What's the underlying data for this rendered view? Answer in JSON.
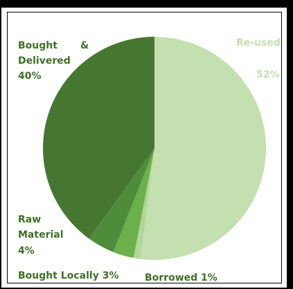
{
  "chart_data": {
    "type": "pie",
    "title": "",
    "slices": [
      {
        "label": "Re-used",
        "value": 52,
        "value_text": "52%",
        "color": "#c4dfb0"
      },
      {
        "label": "Borrowed",
        "value": 1,
        "value_text": "1%",
        "color": "#b2d59b"
      },
      {
        "label": "Bought Locally",
        "value": 3,
        "value_text": "3%",
        "color": "#6bb04a"
      },
      {
        "label": "Raw Material",
        "value": 4,
        "value_text": "4%",
        "color": "#4f8c39"
      },
      {
        "label": "Bought & Delivered",
        "value": 40,
        "value_text": "40%",
        "color": "#467731"
      }
    ],
    "label_color_dark": "#3e7027",
    "label_color_light": "#c4dfb0"
  }
}
